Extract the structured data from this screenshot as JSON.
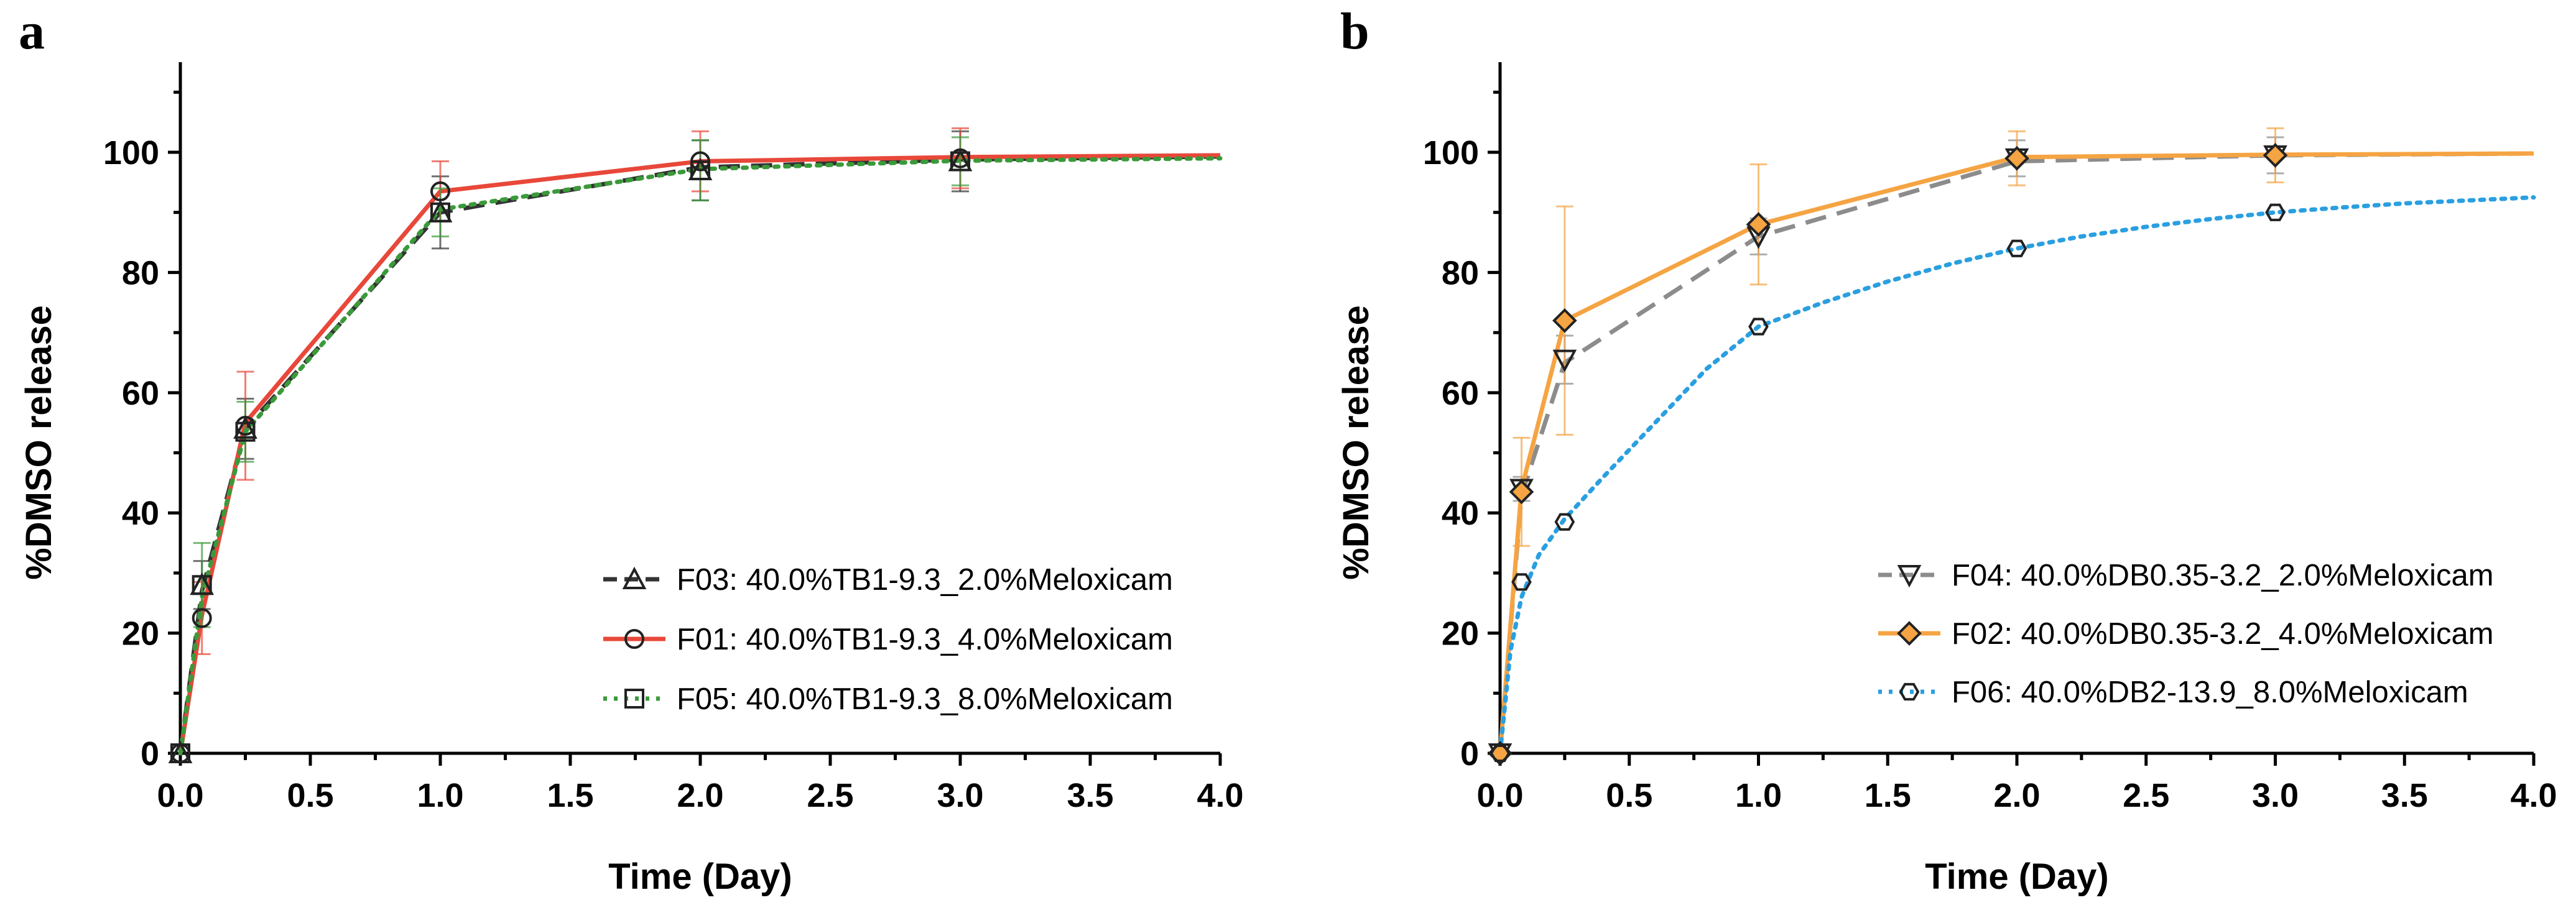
{
  "chart_data": [
    {
      "panel": "a",
      "type": "line",
      "xlabel": "Time (Day)",
      "ylabel": "%DMSO release",
      "xlim": [
        0,
        4.0
      ],
      "ylim": [
        0,
        115
      ],
      "xticks": [
        "0.0",
        "0.5",
        "1.0",
        "1.5",
        "2.0",
        "2.5",
        "3.0",
        "3.5",
        "4.0"
      ],
      "yticks": [
        "0",
        "20",
        "40",
        "60",
        "80",
        "100"
      ],
      "legend_position": "lower-right",
      "series": [
        {
          "name": "F03: 40.0%TB1-9.3_2.0%Meloxicam",
          "color": "#333333",
          "marker": "triangle-up",
          "line_style": "dashed",
          "x": [
            0,
            0.083,
            0.25,
            1,
            2,
            3
          ],
          "y": [
            0,
            28,
            54,
            90,
            97,
            98.5
          ],
          "err": [
            0,
            4,
            5,
            6,
            5,
            5
          ],
          "fit_x": [
            0,
            0.083,
            0.25,
            1,
            2,
            3,
            4
          ],
          "fit_y": [
            0,
            27,
            54,
            90,
            97.5,
            98.8,
            99.3
          ]
        },
        {
          "name": "F01: 40.0%TB1-9.3_4.0%Meloxicam",
          "color": "#e8483a",
          "marker": "circle",
          "line_style": "solid",
          "x": [
            0,
            0.083,
            0.25,
            1,
            2,
            3
          ],
          "y": [
            0,
            22.5,
            54.5,
            93.5,
            98.5,
            99
          ],
          "err": [
            0,
            6,
            9,
            5,
            5,
            5
          ],
          "fit_x": [
            0,
            0.083,
            0.25,
            1,
            2,
            3,
            4
          ],
          "fit_y": [
            0,
            23,
            55,
            93.5,
            98.5,
            99.2,
            99.5
          ]
        },
        {
          "name": "F05: 40.0%TB1-9.3_8.0%Meloxicam",
          "color": "#3a9a3a",
          "marker": "square",
          "line_style": "dotted",
          "x": [
            0,
            0.083,
            0.25,
            1,
            2,
            3
          ],
          "y": [
            0,
            28,
            53.5,
            90,
            97,
            98.5
          ],
          "err": [
            0,
            7,
            5,
            4,
            5,
            4
          ],
          "fit_x": [
            0,
            0.083,
            0.25,
            1,
            2,
            3,
            4
          ],
          "fit_y": [
            0,
            26,
            53.5,
            90.5,
            97.2,
            98.6,
            99
          ]
        }
      ]
    },
    {
      "panel": "b",
      "type": "line",
      "xlabel": "Time (Day)",
      "ylabel": "%DMSO release",
      "xlim": [
        0,
        4.0
      ],
      "ylim": [
        0,
        115
      ],
      "xticks": [
        "0.0",
        "0.5",
        "1.0",
        "1.5",
        "2.0",
        "2.5",
        "3.0",
        "3.5",
        "4.0"
      ],
      "yticks": [
        "0",
        "20",
        "40",
        "60",
        "80",
        "100"
      ],
      "legend_position": "lower-right",
      "series": [
        {
          "name": "F04: 40.0%DB0.35-3.2_2.0%Meloxicam",
          "color": "#8c8c8c",
          "marker": "triangle-down",
          "line_style": "dashed",
          "x": [
            0,
            0.083,
            0.25,
            1,
            2,
            3
          ],
          "y": [
            0,
            44,
            65.5,
            86,
            99,
            99.5
          ],
          "err": [
            0,
            2,
            4,
            3,
            3,
            3
          ],
          "fit_x": [
            0,
            0.083,
            0.25,
            1,
            2,
            3,
            4
          ],
          "fit_y": [
            0,
            43,
            65,
            86,
            98.5,
            99.5,
            99.8
          ]
        },
        {
          "name": "F02: 40.0%DB0.35-3.2_4.0%Meloxicam",
          "color": "#f5a443",
          "marker": "diamond",
          "line_style": "solid",
          "x": [
            0,
            0.083,
            0.25,
            1,
            2,
            3
          ],
          "y": [
            0,
            43.5,
            72,
            88,
            99,
            99.5
          ],
          "err": [
            0,
            9,
            19,
            10,
            4.5,
            4.5
          ],
          "fit_x": [
            0,
            0.083,
            0.25,
            1,
            2,
            3,
            4
          ],
          "fit_y": [
            0,
            44,
            72,
            88,
            99.2,
            99.6,
            99.8
          ]
        },
        {
          "name": "F06: 40.0%DB2-13.9_8.0%Meloxicam",
          "color": "#2a9fe0",
          "marker": "hexagon",
          "line_style": "dotted",
          "x": [
            0,
            0.083,
            0.25,
            1,
            2,
            3
          ],
          "y": [
            0,
            28.5,
            38.5,
            71,
            84,
            90
          ],
          "err": [
            0,
            0,
            0,
            0,
            0,
            0
          ],
          "fit_x": [
            0,
            0.04,
            0.083,
            0.15,
            0.25,
            0.4,
            0.6,
            0.8,
            1,
            1.25,
            1.5,
            1.75,
            2,
            2.25,
            2.5,
            2.75,
            3,
            3.25,
            3.5,
            3.75,
            4
          ],
          "fit_y": [
            0,
            17,
            26,
            33,
            39,
            46,
            55,
            64,
            71,
            75,
            78.5,
            81.5,
            84,
            86,
            87.6,
            88.9,
            90,
            90.8,
            91.5,
            92,
            92.5
          ]
        }
      ]
    }
  ]
}
